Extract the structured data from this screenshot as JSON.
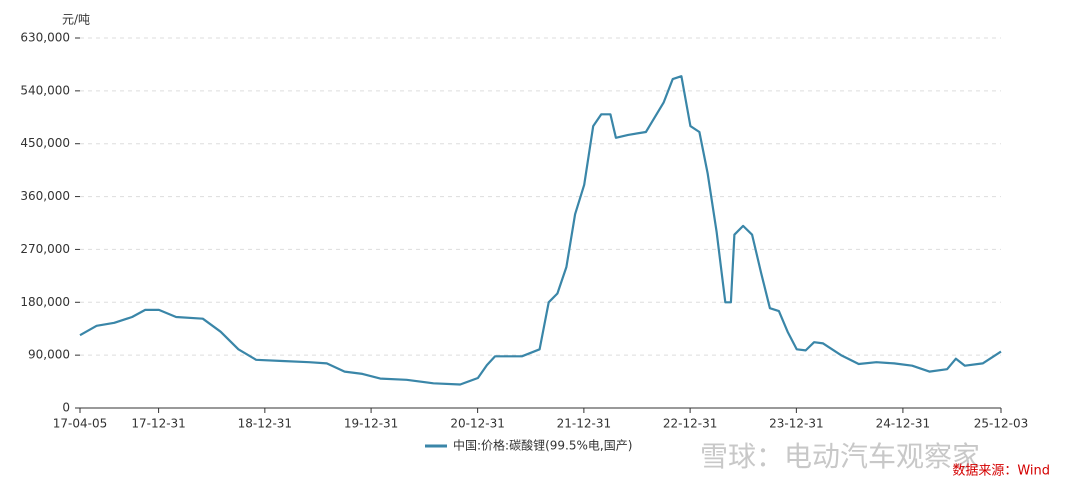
{
  "chart_data": {
    "type": "line",
    "unit_label": "元/吨",
    "x": [
      "17-04-05",
      "17-06-01",
      "17-08-01",
      "17-10-01",
      "17-11-15",
      "18-01-01",
      "18-03-01",
      "18-06-01",
      "18-08-01",
      "18-10-01",
      "18-12-01",
      "19-03-01",
      "19-06-01",
      "19-08-01",
      "19-10-01",
      "19-12-01",
      "20-02-01",
      "20-05-01",
      "20-08-01",
      "20-11-01",
      "21-01-01",
      "21-02-01",
      "21-03-01",
      "21-06-01",
      "21-08-01",
      "21-09-01",
      "21-10-01",
      "21-11-01",
      "21-12-01",
      "22-01-01",
      "22-02-01",
      "22-03-01",
      "22-04-01",
      "22-04-20",
      "22-06-01",
      "22-08-01",
      "22-10-01",
      "22-11-01",
      "22-12-01",
      "23-01-01",
      "23-02-01",
      "23-03-01",
      "23-04-01",
      "23-05-01",
      "23-05-20",
      "23-06-01",
      "23-07-01",
      "23-08-01",
      "23-09-01",
      "23-10-01",
      "23-11-01",
      "23-12-01",
      "24-01-01",
      "24-02-01",
      "24-03-01",
      "24-04-01",
      "24-06-01",
      "24-08-01",
      "24-10-01",
      "24-12-01",
      "25-02-01",
      "25-04-01",
      "25-06-01",
      "25-07-01",
      "25-08-01",
      "25-10-01",
      "25-12-03"
    ],
    "series": [
      {
        "name": "中国:价格:碳酸锂(99.5%电,国产)",
        "color": "#3a86a8",
        "values": [
          124000,
          140000,
          145000,
          155000,
          167000,
          167000,
          155000,
          152000,
          130000,
          100000,
          82000,
          80000,
          78000,
          76000,
          62000,
          58000,
          50000,
          48000,
          42000,
          40000,
          51000,
          73000,
          88000,
          88000,
          100000,
          180000,
          195000,
          240000,
          330000,
          380000,
          480000,
          500000,
          500000,
          460000,
          465000,
          470000,
          520000,
          560000,
          565000,
          480000,
          470000,
          400000,
          300000,
          180000,
          180000,
          295000,
          310000,
          295000,
          230000,
          170000,
          165000,
          130000,
          100000,
          98000,
          112000,
          110000,
          90000,
          75000,
          78000,
          76000,
          72000,
          62000,
          66000,
          84000,
          72000,
          76000,
          96000
        ]
      }
    ],
    "xlim": [
      "17-04-05",
      "25-12-03"
    ],
    "xticks": [
      "17-04-05",
      "17-12-31",
      "18-12-31",
      "19-12-31",
      "20-12-31",
      "21-12-31",
      "22-12-31",
      "23-12-31",
      "24-12-31",
      "25-12-03"
    ],
    "ylim": [
      0,
      630000
    ],
    "yticks": [
      0,
      {
        "value": 90000,
        "label": "90,000"
      },
      {
        "value": 180000,
        "label": "180,000"
      },
      {
        "value": 270000,
        "label": "270,000"
      },
      {
        "value": 360000,
        "label": "360,000"
      },
      {
        "value": 450000,
        "label": "450,000"
      },
      {
        "value": 540000,
        "label": "540,000"
      },
      {
        "value": 630000,
        "label": "630,000"
      }
    ],
    "grid": true,
    "legend": "bottom",
    "watermark": "雪球：电动汽车观察家",
    "source": "数据来源：Wind"
  }
}
